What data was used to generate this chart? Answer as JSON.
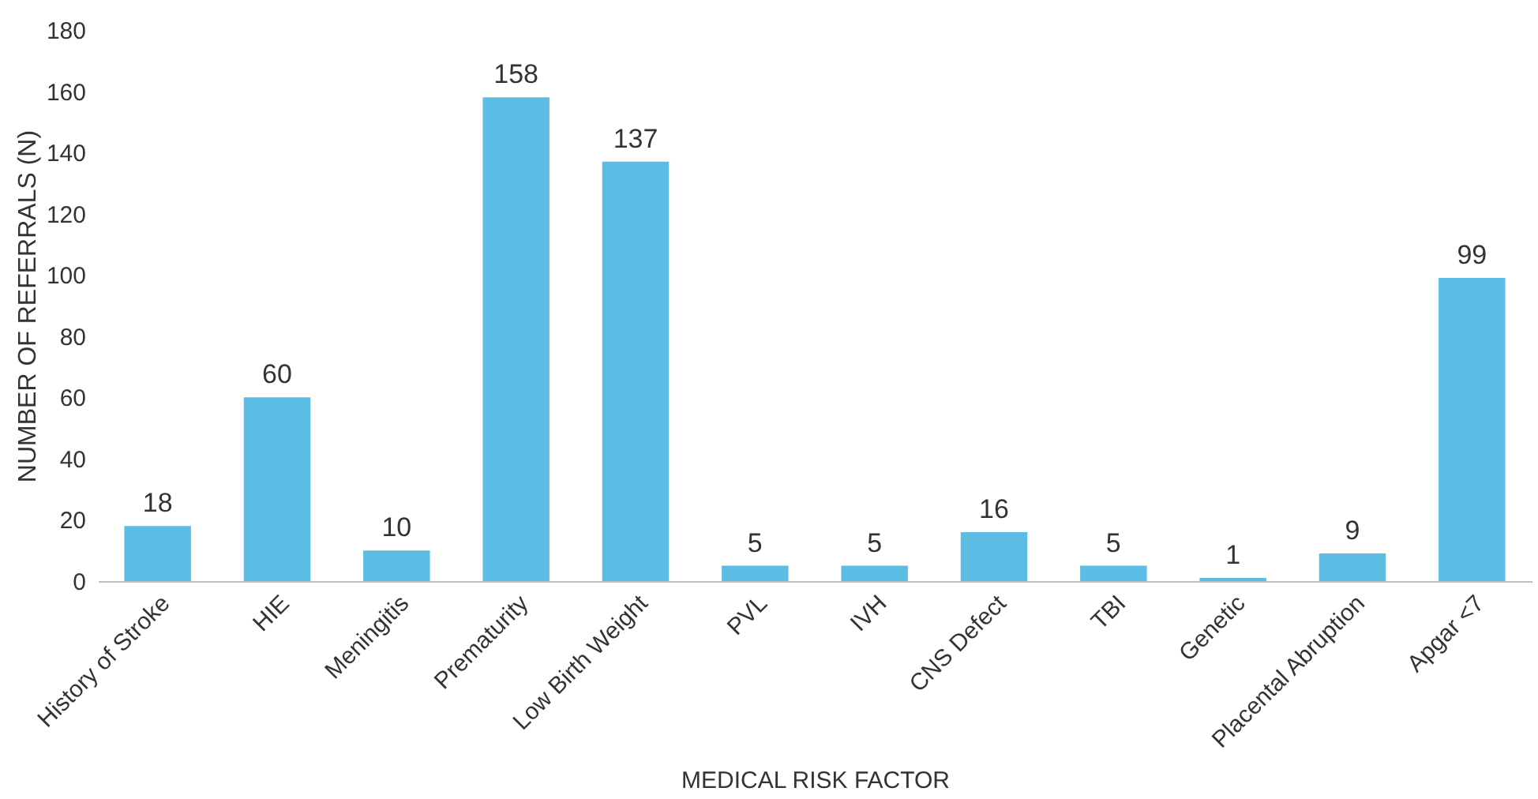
{
  "chart_data": {
    "type": "bar",
    "xlabel": "MEDICAL RISK FACTOR",
    "ylabel": "NUMBER OF REFERRALS (N)",
    "categories": [
      "History of Stroke",
      "HIE",
      "Meningitis",
      "Prematurity",
      "Low Birth Weight",
      "PVL",
      "IVH",
      "CNS Defect",
      "TBI",
      "Genetic",
      "Placental Abruption",
      "Apgar <7"
    ],
    "values": [
      18,
      60,
      10,
      158,
      137,
      5,
      5,
      16,
      5,
      1,
      9,
      99
    ],
    "color": "#5bbde4",
    "ylim": [
      0,
      180
    ],
    "yticks": [
      0,
      20,
      40,
      60,
      80,
      100,
      120,
      140,
      160,
      180
    ],
    "grid": false,
    "data_labels": true
  }
}
